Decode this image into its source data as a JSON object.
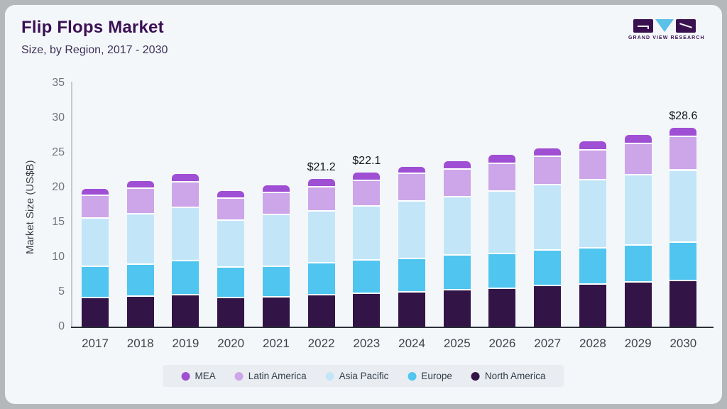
{
  "header": {
    "title": "Flip Flops Market",
    "subtitle": "Size, by Region, 2017 - 2030"
  },
  "logo": {
    "caption": "GRAND VIEW RESEARCH",
    "purple": "#3a1150",
    "blue": "#5bc1e9"
  },
  "colors": {
    "frame": "#b4b8ba",
    "card_bg": "#f4f7fa",
    "title_text": "#3b1053",
    "subtitle_text": "#3c2f55",
    "y_axis_line": "#c5c9cd",
    "x_axis_line": "#2b3038",
    "tick_text": "#70757a",
    "x_label_text": "#3f4449",
    "value_label_text": "#16191d",
    "legend_text": "#333c47",
    "legend_band": "#e9edf1",
    "segment_separator": "#ffffff"
  },
  "chart_data": {
    "type": "bar",
    "stacked": true,
    "title": "Flip Flops Market Size, by Region, 2017 - 2030",
    "xlabel": "",
    "ylabel": "Market Size (US$B)",
    "ylim": [
      0,
      35
    ],
    "ytick_step": 5,
    "grid": false,
    "legend_position": "bottom",
    "categories": [
      "2017",
      "2018",
      "2019",
      "2020",
      "2021",
      "2022",
      "2023",
      "2024",
      "2025",
      "2026",
      "2027",
      "2028",
      "2029",
      "2030"
    ],
    "stack_order": "bottom-to-top",
    "series": [
      {
        "name": "North America",
        "color": "#321447",
        "values": [
          4.1,
          4.3,
          4.5,
          4.1,
          4.2,
          4.5,
          4.7,
          4.9,
          5.2,
          5.4,
          5.8,
          6.0,
          6.3,
          6.5
        ]
      },
      {
        "name": "Europe",
        "color": "#4fc5f0",
        "values": [
          4.5,
          4.6,
          4.9,
          4.4,
          4.4,
          4.6,
          4.8,
          4.8,
          5.0,
          5.0,
          5.1,
          5.2,
          5.3,
          5.5
        ]
      },
      {
        "name": "Asia Pacific",
        "color": "#c2e6f8",
        "values": [
          6.9,
          7.2,
          7.6,
          6.7,
          7.4,
          7.4,
          7.7,
          8.3,
          8.4,
          9.0,
          9.4,
          9.8,
          10.1,
          10.4
        ]
      },
      {
        "name": "Latin America",
        "color": "#cda5e9",
        "values": [
          3.3,
          3.7,
          3.7,
          3.2,
          3.2,
          3.5,
          3.7,
          3.9,
          4.0,
          4.0,
          4.1,
          4.3,
          4.5,
          4.8
        ]
      },
      {
        "name": "MEA",
        "color": "#9f4fd3",
        "values": [
          1.0,
          1.1,
          1.2,
          1.1,
          1.1,
          1.2,
          1.2,
          1.1,
          1.2,
          1.3,
          1.2,
          1.3,
          1.4,
          1.4
        ]
      }
    ],
    "totals": [
      19.8,
      20.9,
      21.9,
      19.5,
      20.3,
      21.2,
      22.1,
      23.0,
      23.8,
      24.7,
      25.6,
      26.6,
      27.6,
      28.6
    ],
    "value_labels": {
      "2022": "$21.2",
      "2023": "$22.1",
      "2030": "$28.6"
    },
    "legend_order": [
      "MEA",
      "Latin America",
      "Asia Pacific",
      "Europe",
      "North America"
    ]
  }
}
